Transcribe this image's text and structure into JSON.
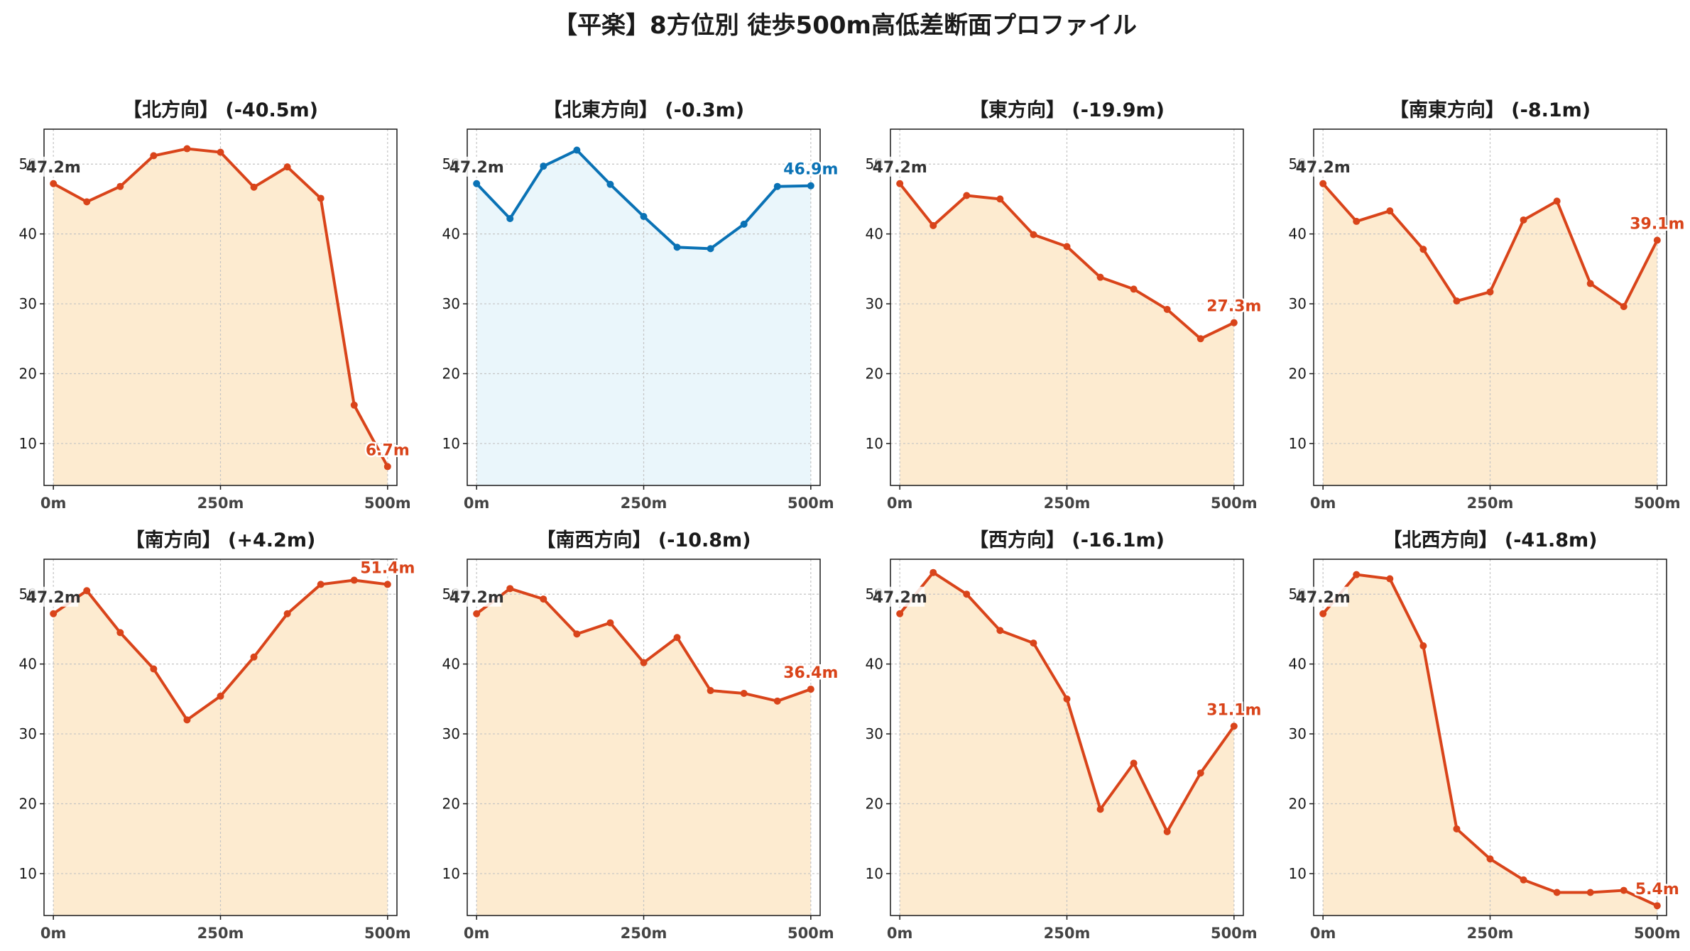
{
  "title": "【平楽】8方位別 徒歩500m高低差断面プロファイル",
  "colors": {
    "line_orange": "#d9441a",
    "fill_orange": "#fdebd0",
    "line_blue": "#0a72b5",
    "fill_blue": "#eaf6fb",
    "start_label": "#333333"
  },
  "chart_data": [
    {
      "type": "area",
      "title": "【北方向】 (-40.5m)",
      "x": [
        0,
        50,
        100,
        150,
        200,
        250,
        300,
        350,
        400,
        450,
        500
      ],
      "y": [
        47.2,
        44.6,
        46.8,
        51.2,
        52.2,
        51.7,
        46.7,
        49.6,
        45.1,
        15.5,
        6.7
      ],
      "xticks": [
        "0m",
        "250m",
        "500m"
      ],
      "yticks": [
        10,
        20,
        30,
        40,
        50
      ],
      "xlim": [
        -14,
        514
      ],
      "ylim": [
        4,
        55
      ],
      "grid": true,
      "color": "orange",
      "start_label": "47.2m",
      "end_label": "6.7m"
    },
    {
      "type": "area",
      "title": "【北東方向】 (-0.3m)",
      "x": [
        0,
        50,
        100,
        150,
        200,
        250,
        300,
        350,
        400,
        450,
        500
      ],
      "y": [
        47.2,
        42.2,
        49.7,
        52.0,
        47.1,
        42.5,
        38.1,
        37.9,
        41.4,
        46.8,
        46.9
      ],
      "xticks": [
        "0m",
        "250m",
        "500m"
      ],
      "yticks": [
        10,
        20,
        30,
        40,
        50
      ],
      "xlim": [
        -14,
        514
      ],
      "ylim": [
        4,
        55
      ],
      "grid": true,
      "color": "blue",
      "start_label": "47.2m",
      "end_label": "46.9m"
    },
    {
      "type": "area",
      "title": "【東方向】 (-19.9m)",
      "x": [
        0,
        50,
        100,
        150,
        200,
        250,
        300,
        350,
        400,
        450,
        500
      ],
      "y": [
        47.2,
        41.2,
        45.5,
        45.0,
        39.9,
        38.2,
        33.8,
        32.1,
        29.2,
        25.0,
        27.3
      ],
      "xticks": [
        "0m",
        "250m",
        "500m"
      ],
      "yticks": [
        10,
        20,
        30,
        40,
        50
      ],
      "xlim": [
        -14,
        514
      ],
      "ylim": [
        4,
        55
      ],
      "grid": true,
      "color": "orange",
      "start_label": "47.2m",
      "end_label": "27.3m"
    },
    {
      "type": "area",
      "title": "【南東方向】 (-8.1m)",
      "x": [
        0,
        50,
        100,
        150,
        200,
        250,
        300,
        350,
        400,
        450,
        500
      ],
      "y": [
        47.2,
        41.8,
        43.3,
        37.8,
        30.4,
        31.7,
        42.0,
        44.7,
        32.9,
        29.6,
        39.1
      ],
      "xticks": [
        "0m",
        "250m",
        "500m"
      ],
      "yticks": [
        10,
        20,
        30,
        40,
        50
      ],
      "xlim": [
        -14,
        514
      ],
      "ylim": [
        4,
        55
      ],
      "grid": true,
      "color": "orange",
      "start_label": "47.2m",
      "end_label": "39.1m"
    },
    {
      "type": "area",
      "title": "【南方向】 (+4.2m)",
      "x": [
        0,
        50,
        100,
        150,
        200,
        250,
        300,
        350,
        400,
        450,
        500
      ],
      "y": [
        47.2,
        50.5,
        44.5,
        39.3,
        32.0,
        35.4,
        41.0,
        47.2,
        51.4,
        52.0,
        51.4
      ],
      "xticks": [
        "0m",
        "250m",
        "500m"
      ],
      "yticks": [
        10,
        20,
        30,
        40,
        50
      ],
      "xlim": [
        -14,
        514
      ],
      "ylim": [
        4,
        55
      ],
      "grid": true,
      "color": "orange",
      "start_label": "47.2m",
      "end_label": "51.4m"
    },
    {
      "type": "area",
      "title": "【南西方向】 (-10.8m)",
      "x": [
        0,
        50,
        100,
        150,
        200,
        250,
        300,
        350,
        400,
        450,
        500
      ],
      "y": [
        47.2,
        50.8,
        49.3,
        44.3,
        45.9,
        40.2,
        43.8,
        36.2,
        35.8,
        34.7,
        36.4
      ],
      "xticks": [
        "0m",
        "250m",
        "500m"
      ],
      "yticks": [
        10,
        20,
        30,
        40,
        50
      ],
      "xlim": [
        -14,
        514
      ],
      "ylim": [
        4,
        55
      ],
      "grid": true,
      "color": "orange",
      "start_label": "47.2m",
      "end_label": "36.4m"
    },
    {
      "type": "area",
      "title": "【西方向】 (-16.1m)",
      "x": [
        0,
        50,
        100,
        150,
        200,
        250,
        300,
        350,
        400,
        450,
        500
      ],
      "y": [
        47.2,
        53.1,
        50.0,
        44.8,
        43.0,
        35.0,
        19.2,
        25.8,
        16.0,
        24.4,
        31.1
      ],
      "xticks": [
        "0m",
        "250m",
        "500m"
      ],
      "yticks": [
        10,
        20,
        30,
        40,
        50
      ],
      "xlim": [
        -14,
        514
      ],
      "ylim": [
        4,
        55
      ],
      "grid": true,
      "color": "orange",
      "start_label": "47.2m",
      "end_label": "31.1m"
    },
    {
      "type": "area",
      "title": "【北西方向】 (-41.8m)",
      "x": [
        0,
        50,
        100,
        150,
        200,
        250,
        300,
        350,
        400,
        450,
        500
      ],
      "y": [
        47.2,
        52.8,
        52.2,
        42.6,
        16.4,
        12.1,
        9.1,
        7.3,
        7.3,
        7.6,
        5.4
      ],
      "xticks": [
        "0m",
        "250m",
        "500m"
      ],
      "yticks": [
        10,
        20,
        30,
        40,
        50
      ],
      "xlim": [
        -14,
        514
      ],
      "ylim": [
        4,
        55
      ],
      "grid": true,
      "color": "orange",
      "start_label": "47.2m",
      "end_label": "5.4m"
    }
  ]
}
